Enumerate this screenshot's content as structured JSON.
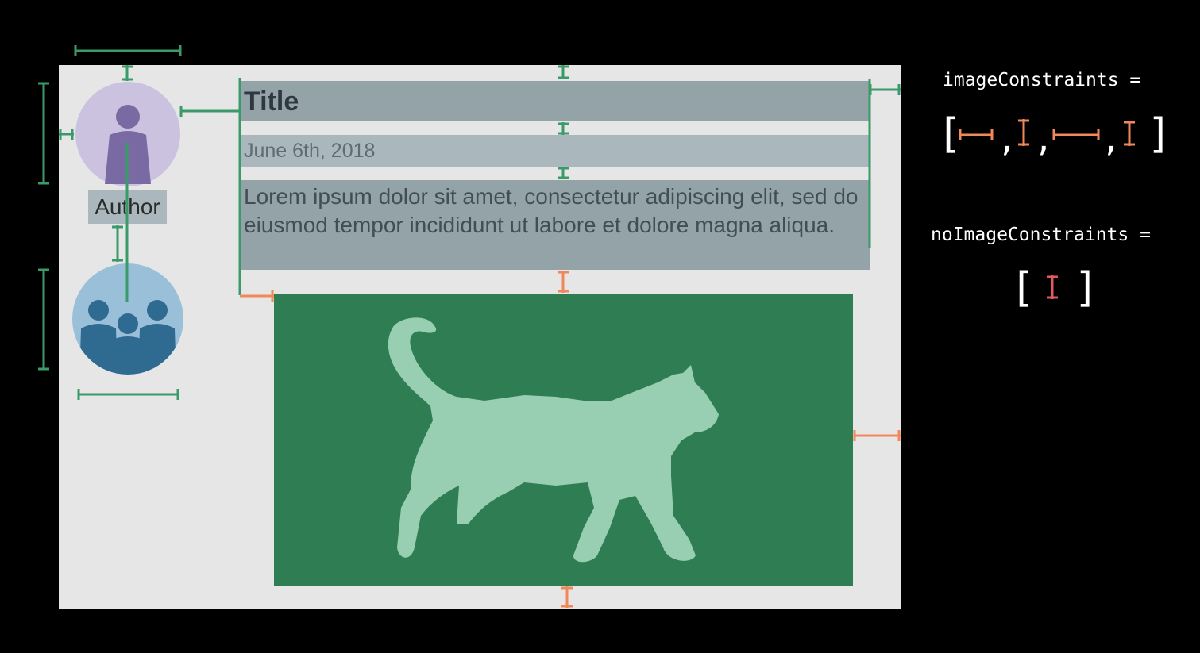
{
  "card": {
    "title": "Title",
    "date": "June 6th, 2018",
    "body": "Lorem ipsum dolor sit amet, consectetur adipiscing elit, sed do eiusmod tempor incididunt ut labore et dolore magna aliqua.",
    "author": "Author"
  },
  "code": {
    "image_constraints_label": "imageConstraints =",
    "no_image_constraints_label": "noImageConstraints =",
    "open_bracket": "[",
    "close_bracket": "]",
    "comma": ","
  },
  "colors": {
    "background": "#000000",
    "card": "#e6e6e6",
    "green_constraint": "#3a9a6a",
    "orange_constraint": "#f0885a",
    "red_constraint": "#e25a5a",
    "cat_background": "#2f7d53",
    "cat_silhouette": "#98cfb2",
    "avatar_purple": "#cbc2e0",
    "avatar_blue": "#9ac0d9"
  }
}
